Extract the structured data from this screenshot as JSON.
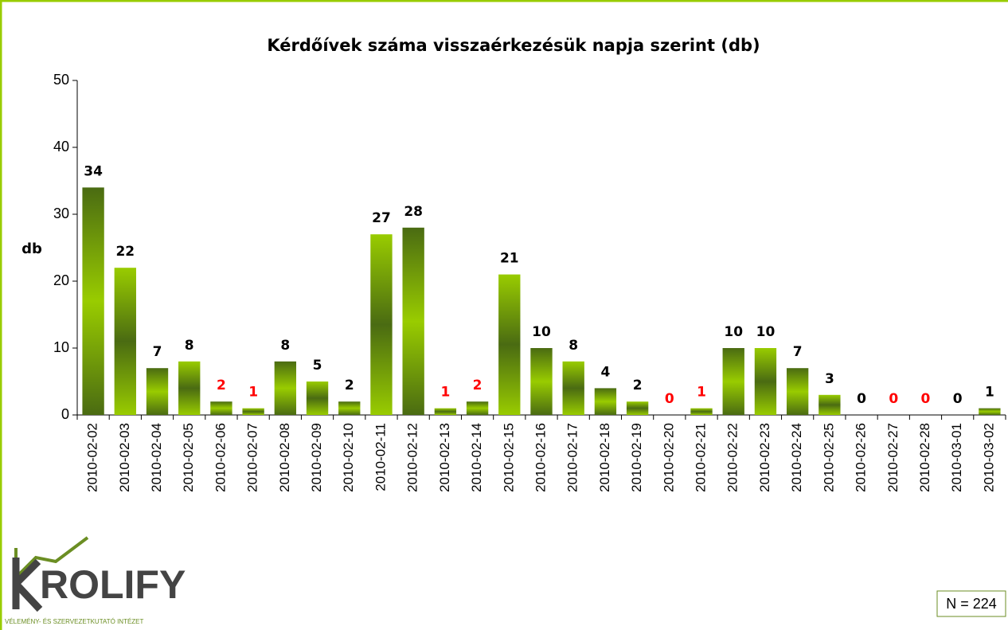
{
  "chart_data": {
    "type": "bar",
    "title": "Kérdőívek száma visszaérkezésük napja szerint (db)",
    "y_label": "db",
    "note": "N = 224",
    "logo": {
      "name": "ROLIFY",
      "tagline": "VÉLEMÉNY- ÉS SZERVEZETKUTATÓ INTÉZET"
    },
    "categories": [
      "2010-02-02",
      "2010-02-03",
      "2010-02-04",
      "2010-02-05",
      "2010-02-06",
      "2010-02-07",
      "2010-02-08",
      "2010-02-09",
      "2010-02-10",
      "2010-02-11",
      "2010-02-12",
      "2010-02-13",
      "2010-02-14",
      "2010-02-15",
      "2010-02-16",
      "2010-02-17",
      "2010-02-18",
      "2010-02-19",
      "2010-02-20",
      "2010-02-21",
      "2010-02-22",
      "2010-02-23",
      "2010-02-24",
      "2010-02-25",
      "2010-02-26",
      "2010-02-27",
      "2010-02-28",
      "2010-03-01",
      "2010-03-02"
    ],
    "values": [
      34,
      22,
      7,
      8,
      2,
      1,
      8,
      5,
      2,
      27,
      28,
      1,
      2,
      21,
      10,
      8,
      4,
      2,
      0,
      1,
      10,
      10,
      7,
      3,
      0,
      0,
      0,
      0,
      1
    ],
    "label_colors": [
      "#000000",
      "#000000",
      "#000000",
      "#000000",
      "#ff0000",
      "#ff0000",
      "#000000",
      "#000000",
      "#000000",
      "#000000",
      "#000000",
      "#ff0000",
      "#ff0000",
      "#000000",
      "#000000",
      "#000000",
      "#000000",
      "#000000",
      "#ff0000",
      "#ff0000",
      "#000000",
      "#000000",
      "#000000",
      "#000000",
      "#000000",
      "#ff0000",
      "#ff0000",
      "#000000",
      "#000000"
    ],
    "colors": [
      "#4a6b12",
      "#99cc00"
    ],
    "ylim": [
      0,
      50
    ],
    "yticks": [
      0,
      10,
      20,
      30,
      40,
      50
    ],
    "grid": false
  }
}
